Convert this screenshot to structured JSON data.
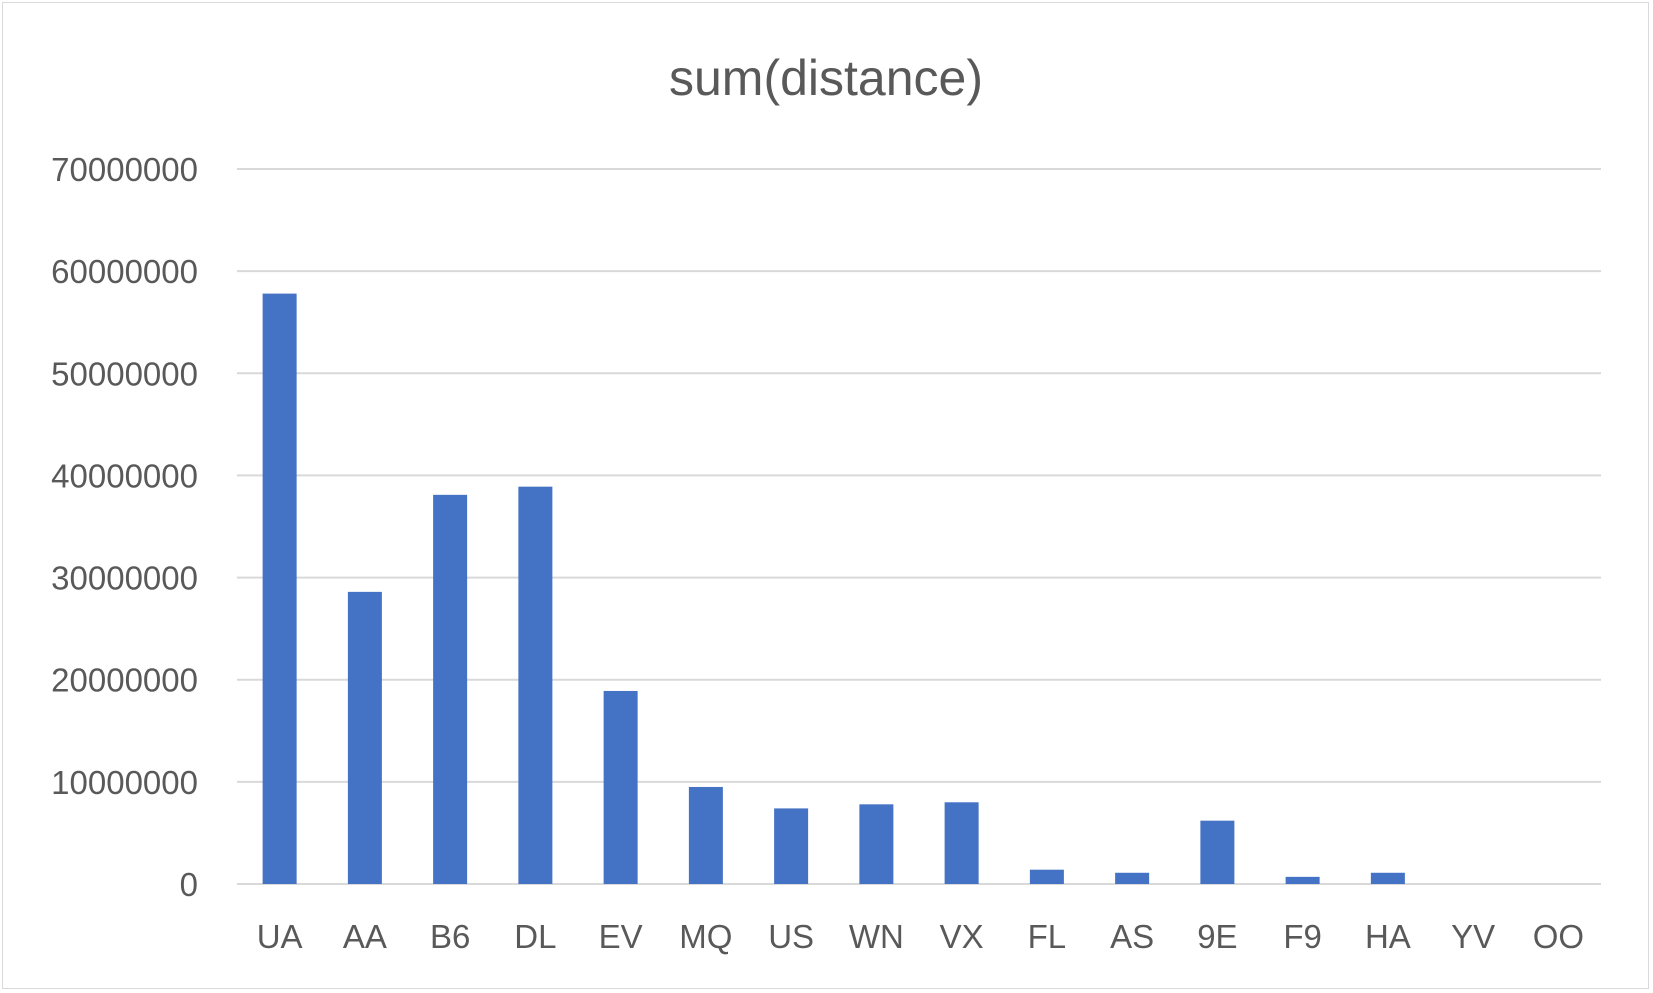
{
  "chart_data": {
    "type": "bar",
    "title": "sum(distance)",
    "xlabel": "",
    "ylabel": "",
    "categories": [
      "UA",
      "AA",
      "B6",
      "DL",
      "EV",
      "MQ",
      "US",
      "WN",
      "VX",
      "FL",
      "AS",
      "9E",
      "F9",
      "HA",
      "YV",
      "OO"
    ],
    "series": [
      {
        "values": [
          57800000,
          28600000,
          38100000,
          38900000,
          18900000,
          9500000,
          7400000,
          7800000,
          8000000,
          1400000,
          1100000,
          6200000,
          700000,
          1100000,
          0,
          0
        ],
        "color": "#4472c4"
      }
    ],
    "ylim": [
      0,
      70000000
    ],
    "yticks": [
      "0",
      "10000000",
      "20000000",
      "30000000",
      "40000000",
      "50000000",
      "60000000",
      "70000000"
    ],
    "grid": true,
    "legend": "none"
  }
}
